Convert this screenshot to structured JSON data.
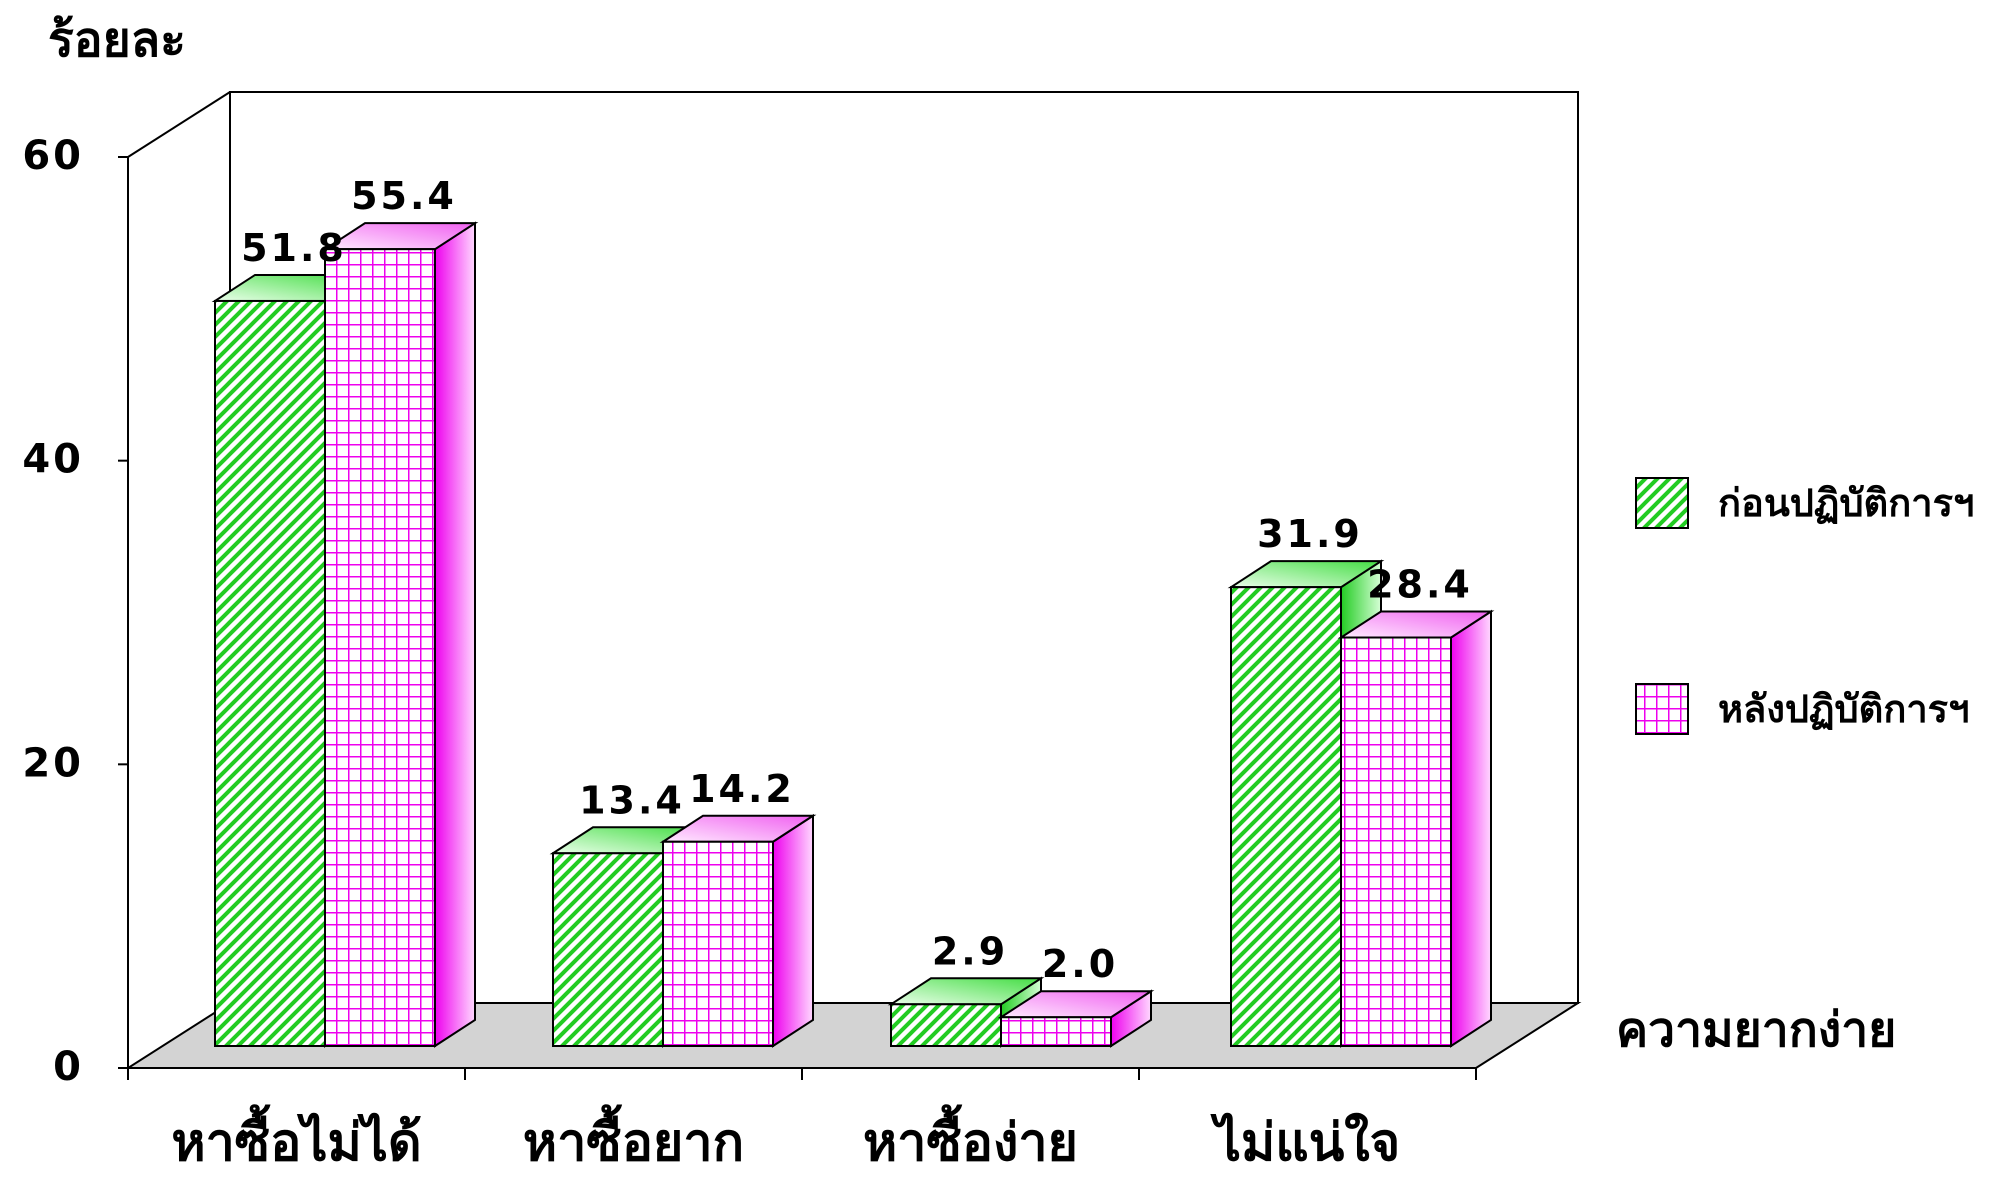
{
  "chart_data": {
    "type": "bar",
    "style": "3d-clustered-column",
    "ylabel": "ร้อยละ",
    "xlabel": "ความยากง่าย",
    "ylim": [
      0,
      60
    ],
    "yticks": [
      "0",
      "20",
      "40",
      "60"
    ],
    "categories": [
      "หาซื้อไม่ได้",
      "หาซื้อยาก",
      "หาซื้อง่าย",
      "ไม่แน่ใจ"
    ],
    "series": [
      {
        "name": "ก่อนปฏิบัติการฯ",
        "values": [
          51.8,
          13.4,
          2.9,
          31.9
        ],
        "labels": [
          "51.8",
          "13.4",
          "2.9",
          "31.9"
        ],
        "color": "#22cc22",
        "pattern": "diagonal-stripes"
      },
      {
        "name": "หลังปฏิบัติการฯ",
        "values": [
          55.4,
          14.2,
          2.0,
          28.4
        ],
        "labels": [
          "55.4",
          "14.2",
          "2.0",
          "28.4"
        ],
        "color": "#ee00ee",
        "pattern": "grid"
      }
    ],
    "legend": "right",
    "grid": false,
    "floor_color": "#d3d3d3"
  }
}
